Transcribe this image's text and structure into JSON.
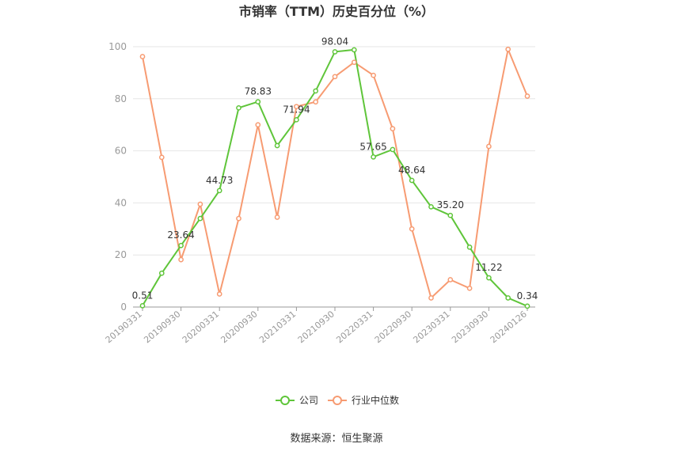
{
  "chart_data": {
    "type": "line",
    "title": "市销率（TTM）历史百分位（%）",
    "source": "数据来源：恒生聚源",
    "ylim": [
      0,
      100
    ],
    "y_ticks": [
      "0",
      "20",
      "40",
      "60",
      "80",
      "100"
    ],
    "x_tick_labels": [
      "20190331",
      "20190930",
      "20200331",
      "20200930",
      "20210331",
      "20210930",
      "20220331",
      "20220930",
      "20230331",
      "20230930",
      "20240126"
    ],
    "x": [
      "20190331",
      "20190630",
      "20190930",
      "20191231",
      "20200331",
      "20200630",
      "20200930",
      "20201231",
      "20210331",
      "20210630",
      "20210930",
      "20211231",
      "20220331",
      "20220630",
      "20220930",
      "20221231",
      "20230331",
      "20230630",
      "20230930",
      "20231231",
      "20240126"
    ],
    "grid": true,
    "legend_position": "bottom",
    "series": [
      {
        "name": "公司",
        "color": "#5fc53a",
        "values": [
          0.51,
          13.0,
          23.64,
          34.0,
          44.73,
          76.5,
          78.83,
          62.0,
          71.94,
          83.0,
          98.04,
          98.8,
          57.65,
          60.5,
          48.64,
          38.5,
          35.2,
          23.0,
          11.22,
          3.5,
          0.34
        ],
        "labels": [
          "0.51",
          "",
          "23.64",
          "",
          "44.73",
          "",
          "78.83",
          "",
          "71.94",
          "",
          "98.04",
          "",
          "57.65",
          "",
          "48.64",
          "",
          "35.20",
          "",
          "11.22",
          "",
          "0.34"
        ]
      },
      {
        "name": "行业中位数",
        "color": "#f79b72",
        "values": [
          96.2,
          57.5,
          18.2,
          39.5,
          5.0,
          34.0,
          70.0,
          34.5,
          77.0,
          78.8,
          88.5,
          94.0,
          89.0,
          68.5,
          30.0,
          3.5,
          10.5,
          7.2,
          61.7,
          99.0,
          81.0
        ]
      }
    ]
  }
}
